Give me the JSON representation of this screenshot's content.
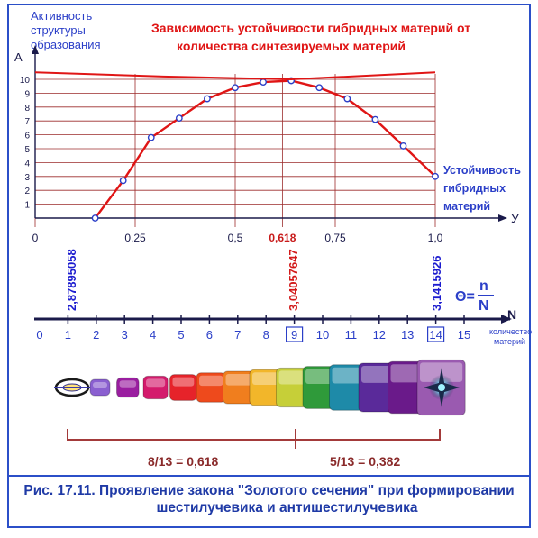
{
  "title_lines": [
    "Зависимость устойчивости гибридных материй от",
    "количества синтезируемых материй"
  ],
  "y_axis_label_lines": [
    "Активность",
    "структуры",
    "образования"
  ],
  "y_axis_symbol": "А",
  "x_axis_symbol": "У",
  "stability_label_lines": [
    "Устойчивость",
    "гибридных",
    "материй"
  ],
  "n_axis_symbol": "N",
  "n_axis_label_lines": [
    "количество",
    "материй"
  ],
  "theta_formula": {
    "lhs": "Θ=",
    "numerator": "n",
    "denominator": "N"
  },
  "vertical_markers": [
    {
      "text": "2,87895058",
      "color": "#1c1ccf"
    },
    {
      "text": "3,04057647",
      "color": "#d21a1a"
    },
    {
      "text": "3,1415926",
      "color": "#1c1ccf"
    }
  ],
  "bracket_labels": [
    "8/13 = 0,618",
    "5/13 = 0,382"
  ],
  "caption_lines": [
    "Рис. 17.11. Проявление закона \"Золотого сечения\" при формировании",
    "шестилучевика и антишестилучевика"
  ],
  "colors": {
    "curve": "#e01515",
    "grid": "#9c2b2b",
    "axis": "#1a1a4a",
    "label_blue": "#2b3fc8",
    "title_red": "#e01515",
    "bracket": "#a33a3a",
    "frame": "#2b4fc8"
  },
  "chart_data": {
    "type": "line",
    "title": "Зависимость устойчивости гибридных материй от количества синтезируемых материй",
    "xlabel": "У",
    "ylabel": "А",
    "xlim": [
      0,
      1.0
    ],
    "ylim": [
      0,
      10
    ],
    "x_ticks": [
      "0",
      "0,25",
      "0,5",
      "0,618",
      "0,75",
      "1,0"
    ],
    "y_ticks": [
      "1",
      "2",
      "3",
      "4",
      "5",
      "6",
      "7",
      "8",
      "9",
      "10"
    ],
    "grid": true,
    "series": [
      {
        "values": [
          [
            0.15,
            0
          ],
          [
            0.22,
            2.7
          ],
          [
            0.29,
            5.8
          ],
          [
            0.36,
            7.2
          ],
          [
            0.43,
            8.6
          ],
          [
            0.5,
            9.4
          ],
          [
            0.57,
            9.8
          ],
          [
            0.64,
            9.9
          ],
          [
            0.71,
            9.4
          ],
          [
            0.78,
            8.6
          ],
          [
            0.85,
            7.1
          ],
          [
            0.92,
            5.2
          ],
          [
            1.0,
            3.0
          ]
        ]
      },
      {
        "values": [
          [
            0.0,
            10.5
          ],
          [
            0.32,
            10.2
          ],
          [
            0.64,
            10.0
          ],
          [
            1.0,
            10.5
          ]
        ]
      }
    ],
    "n_axis": {
      "ticks": [
        "0",
        "1",
        "2",
        "3",
        "4",
        "5",
        "6",
        "7",
        "8",
        "9",
        "10",
        "11",
        "12",
        "13",
        "14",
        "15"
      ],
      "highlighted_ticks": [
        "9",
        "14"
      ]
    },
    "segments": [
      {
        "count": 13,
        "colors": [
          "#8a5fd0",
          "#9a1ea0",
          "#d41a6c",
          "#e6232a",
          "#ee4a1c",
          "#f07e1e",
          "#f2b62a",
          "#c6cf38",
          "#2f9a3a",
          "#1e8aa8",
          "#5a2a9a",
          "#6a1a8a",
          "#9a5ab0"
        ]
      }
    ]
  }
}
